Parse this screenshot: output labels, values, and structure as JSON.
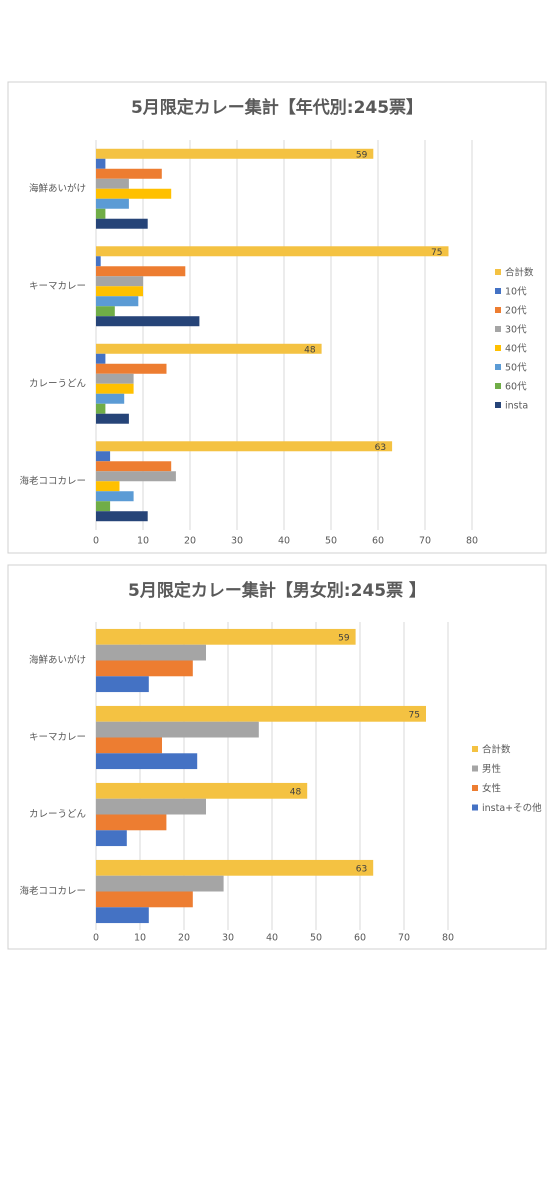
{
  "chart_data": [
    {
      "type": "bar",
      "orientation": "horizontal",
      "title": "5月限定カレー集計【年代別:245票】",
      "categories": [
        "海鮮あいがけ",
        "キーマカレー",
        "カレーうどん",
        "海老ココカレー"
      ],
      "series": [
        {
          "name": "合計数",
          "color": "#f4c242",
          "values": [
            59,
            75,
            48,
            63
          ],
          "data_labels": true
        },
        {
          "name": "10代",
          "color": "#4472c4",
          "values": [
            2,
            1,
            2,
            3
          ]
        },
        {
          "name": "20代",
          "color": "#ed7d31",
          "values": [
            14,
            19,
            15,
            16
          ]
        },
        {
          "name": "30代",
          "color": "#a5a5a5",
          "values": [
            7,
            10,
            8,
            17
          ]
        },
        {
          "name": "40代",
          "color": "#ffc000",
          "values": [
            16,
            10,
            8,
            5
          ]
        },
        {
          "name": "50代",
          "color": "#5b9bd5",
          "values": [
            7,
            9,
            6,
            8
          ]
        },
        {
          "name": "60代",
          "color": "#70ad47",
          "values": [
            2,
            4,
            2,
            3
          ]
        },
        {
          "name": "insta",
          "color": "#264478",
          "values": [
            11,
            22,
            7,
            11
          ]
        }
      ],
      "xlim": [
        0,
        80
      ],
      "xticks": [
        0,
        10,
        20,
        30,
        40,
        50,
        60,
        70,
        80
      ],
      "grid": true,
      "legend": "right"
    },
    {
      "type": "bar",
      "orientation": "horizontal",
      "title": "5月限定カレー集計【男女別:245票 】",
      "categories": [
        "海鮮あいがけ",
        "キーマカレー",
        "カレーうどん",
        "海老ココカレー"
      ],
      "series": [
        {
          "name": "合計数",
          "color": "#f4c242",
          "values": [
            59,
            75,
            48,
            63
          ],
          "data_labels": true
        },
        {
          "name": "男性",
          "color": "#a5a5a5",
          "values": [
            25,
            37,
            25,
            29
          ]
        },
        {
          "name": "女性",
          "color": "#ed7d31",
          "values": [
            22,
            15,
            16,
            22
          ]
        },
        {
          "name": "insta+その他",
          "color": "#4472c4",
          "values": [
            12,
            23,
            7,
            12
          ]
        }
      ],
      "xlim": [
        0,
        80
      ],
      "xticks": [
        0,
        10,
        20,
        30,
        40,
        50,
        60,
        70,
        80
      ],
      "grid": true,
      "legend": "right"
    }
  ]
}
